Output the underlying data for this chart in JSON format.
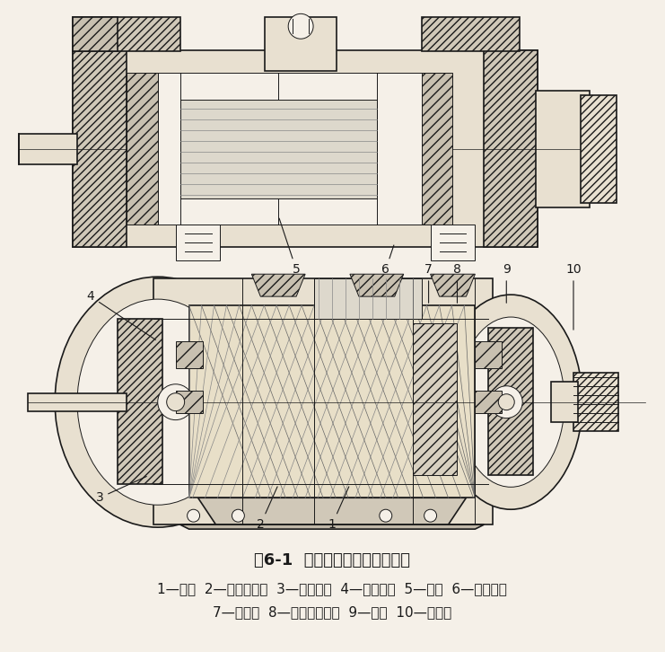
{
  "title": "图6-1  螺杆式制冷压缩机剖面图",
  "caption_line1": "1—机体  2—阴、阳转子  3—吸气端座  4—平衡活塞  5—滑阀  6—排气端座",
  "caption_line2": "7—主轴承  8—径向止推轴承  9—轴封  10—联轴器",
  "bg_color": "#f5f0e8",
  "text_color": "#1a1a1a",
  "title_fontsize": 13,
  "caption_fontsize": 11,
  "fig_width": 7.41,
  "fig_height": 7.26,
  "dpi": 100
}
